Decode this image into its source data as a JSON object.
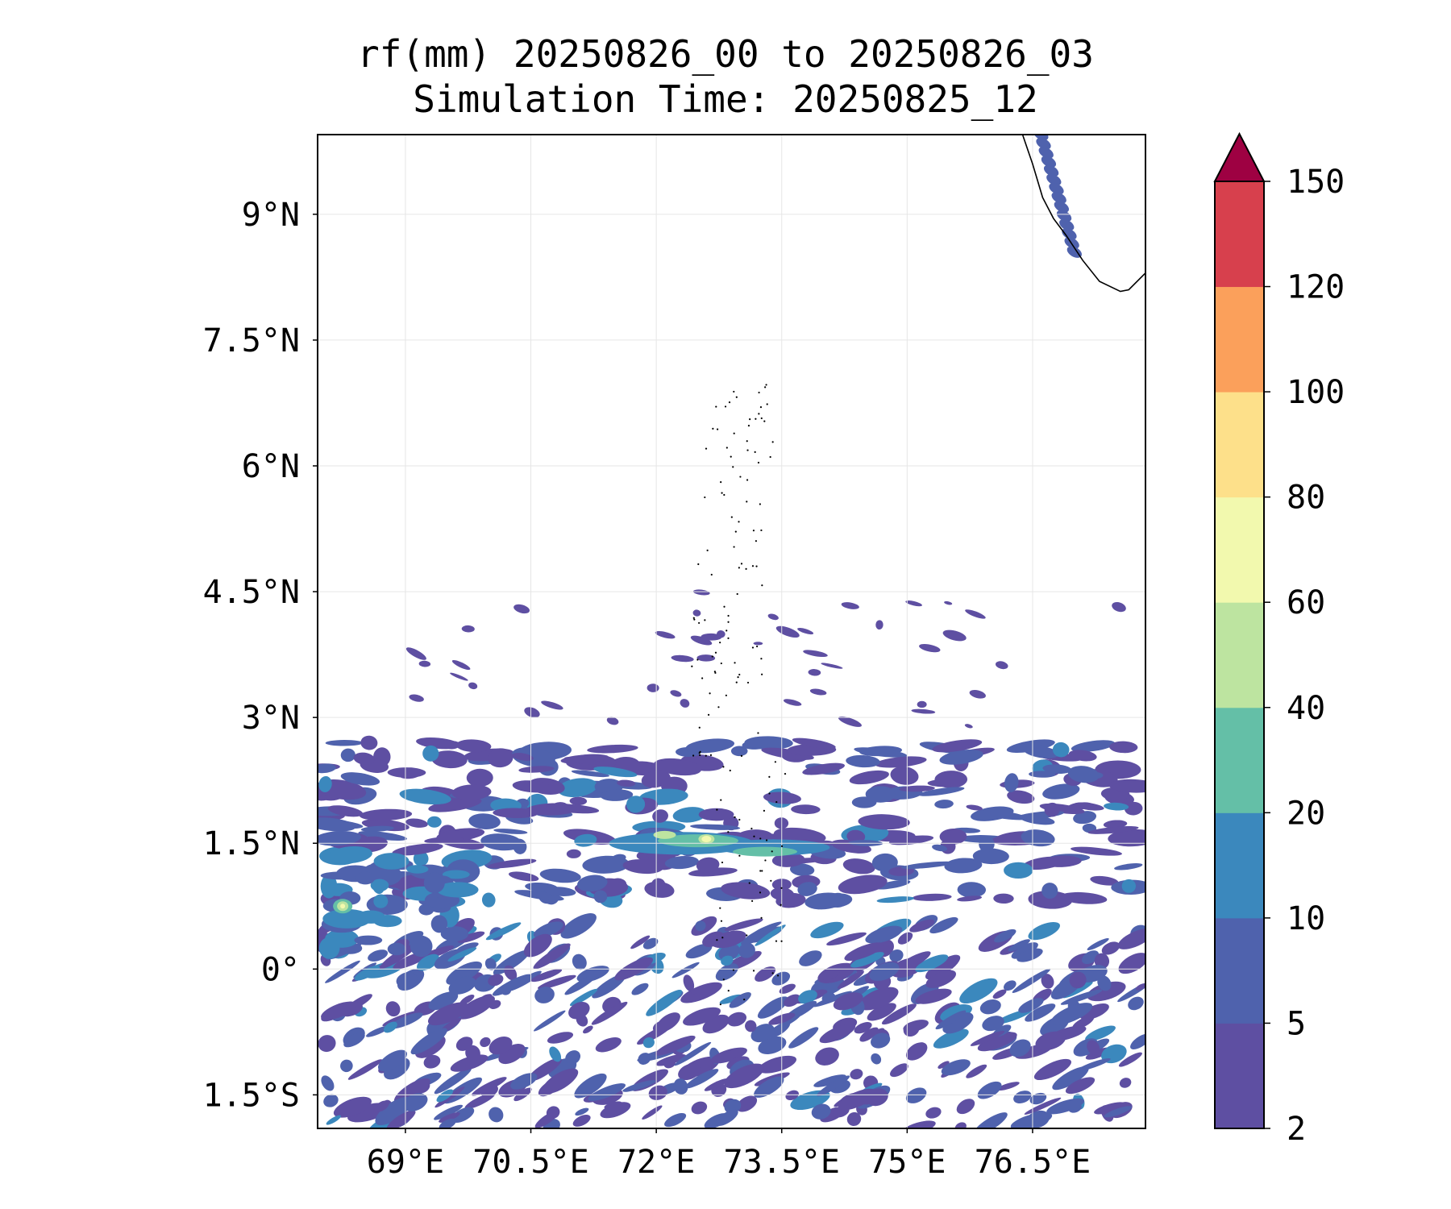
{
  "chart_data": {
    "type": "heatmap",
    "title": "rf(mm) 20250826_00 to 20250826_03",
    "subtitle": "Simulation Time: 20250825_12",
    "xlim": [
      67.95,
      77.85
    ],
    "ylim": [
      -1.9,
      9.95
    ],
    "x_ticks": [
      69,
      70.5,
      72,
      73.5,
      75,
      76.5
    ],
    "x_tick_labels": [
      "69°E",
      "70.5°E",
      "72°E",
      "73.5°E",
      "75°E",
      "76.5°E"
    ],
    "y_ticks": [
      -1.5,
      0,
      1.5,
      3,
      4.5,
      6,
      7.5,
      9
    ],
    "y_tick_labels": [
      "1.5°S",
      "0°",
      "1.5°N",
      "3°N",
      "4.5°N",
      "6°N",
      "7.5°N",
      "9°N"
    ],
    "grid": true,
    "colorbar": {
      "levels": [
        2,
        5,
        10,
        20,
        40,
        60,
        80,
        100,
        120,
        150
      ],
      "level_labels": [
        "2",
        "5",
        "10",
        "20",
        "40",
        "60",
        "80",
        "100",
        "120",
        "150"
      ],
      "colors": [
        "#5e4fa2",
        "#4f62ad",
        "#3b88bd",
        "#64bfa7",
        "#bde4a0",
        "#f2f9ae",
        "#fde08a",
        "#fba05b",
        "#d7404d"
      ],
      "extend_color": "#9e0142",
      "extend": "max"
    },
    "rain_features": [
      {
        "lon_range": [
          67.95,
          77.85
        ],
        "lat_range": [
          1.0,
          2.7
        ],
        "band": "north rain band",
        "level_index": 1
      },
      {
        "lon_range": [
          71.6,
          73.8
        ],
        "lat_range": [
          1.25,
          1.7
        ],
        "band": "core",
        "level_index": 3
      },
      {
        "lon": 72.6,
        "lat": 1.55,
        "band": "peak",
        "level_index": 5
      },
      {
        "lon": 68.25,
        "lat": 0.75,
        "band": "west peak",
        "level_index": 4
      },
      {
        "lon_range": [
          67.95,
          77.85
        ],
        "lat_range": [
          -1.9,
          0.6
        ],
        "band": "south rain band",
        "level_index": 1
      }
    ]
  }
}
